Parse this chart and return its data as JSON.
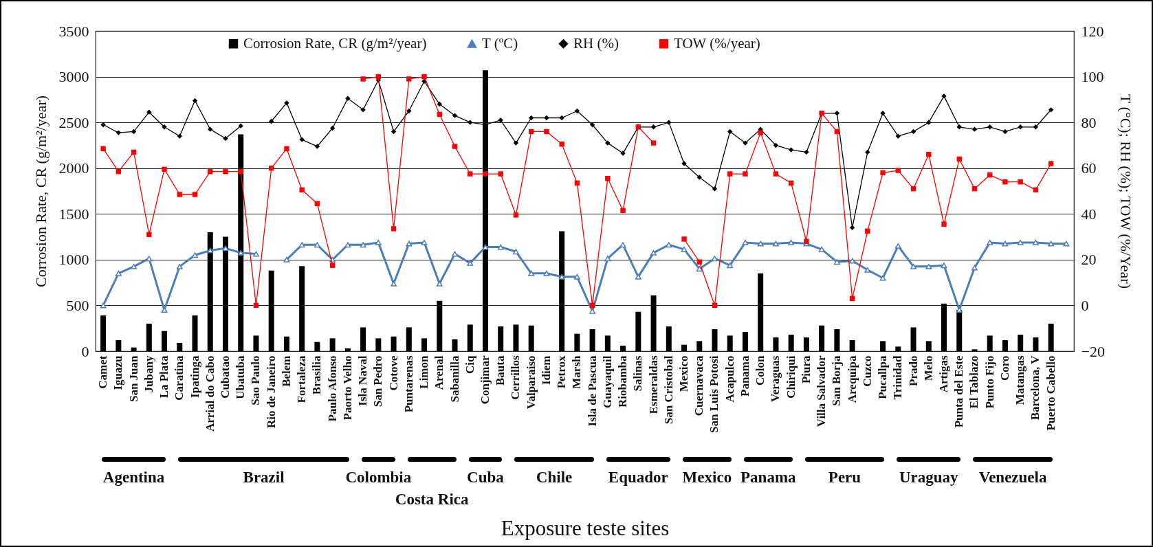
{
  "chart_data": {
    "type": "bar",
    "xlabel": "Exposure teste sites",
    "ylabel": "Corrosion Rate, CR (g/m²/year)",
    "y2label": "T (°C); RH (%); TOW (%/Year)",
    "categories": [
      "Camet",
      "Iguazu",
      "San Juan",
      "Jubany",
      "La Plata",
      "Caratina",
      "Ipatinga",
      "Arrial do Cabo",
      "Cubatao",
      "Ubatuba",
      "Sao Paulo",
      "Rio de Janeiro",
      "Belem",
      "Fortaleza",
      "Brasilia",
      "Paulo Afonso",
      "Paorto Velho",
      "Isla Naval",
      "San Pedro",
      "Cotove",
      "Puntarenas",
      "Limon",
      "Arenal",
      "Sabanilla",
      "Ciq",
      "Conjimar",
      "Bauta",
      "Cerrillos",
      "Valparaiso",
      "Idiem",
      "Petrox",
      "Marsh",
      "Isla de Pascua",
      "Guayaquil",
      "Riobamba",
      "Salinas",
      "Esmeraldas",
      "San Cristobal",
      "Mexico",
      "Cuernavaca",
      "San Luis Potosi",
      "Acapulco",
      "Panama",
      "Colon",
      "Veraguas",
      "Chiriqui",
      "Piura",
      "Villa Salvador",
      "San Borja",
      "Arequipa",
      "Cuzco",
      "Pucallpa",
      "Trinidad",
      "Prado",
      "Melo",
      "Artigas",
      "Punta del Este",
      "El Tablazo",
      "Punto Fijo",
      "Coro",
      "Matangas",
      "Barcelona, V",
      "Puerto Cabello",
      null
    ],
    "series": [
      {
        "name": "Corrosion Rate, CR (g/m²/year)",
        "color": "#000000",
        "values": [
          390,
          120,
          40,
          300,
          220,
          90,
          390,
          1300,
          1250,
          2370,
          170,
          880,
          160,
          930,
          100,
          140,
          30,
          260,
          140,
          160,
          260,
          140,
          550,
          130,
          290,
          3070,
          270,
          290,
          280,
          null,
          1310,
          190,
          240,
          170,
          60,
          430,
          610,
          270,
          70,
          110,
          240,
          170,
          210,
          850,
          150,
          180,
          150,
          280,
          240,
          120,
          null,
          110,
          50,
          260,
          110,
          520,
          450,
          20,
          170,
          120,
          180,
          150,
          300,
          null
        ]
      },
      {
        "name": "T (ºC)",
        "type": "line",
        "axis": "y2",
        "marker": "triangle",
        "color": "#4a7ebb",
        "values": [
          0,
          14,
          17,
          20.5,
          -2,
          17,
          22,
          24,
          25,
          23,
          22.5,
          null,
          20,
          26.5,
          26.5,
          20,
          26.5,
          26.5,
          27.5,
          9.5,
          27,
          27.5,
          9.5,
          22.5,
          18.5,
          25.5,
          25.5,
          23.5,
          14,
          14,
          12.5,
          12.5,
          -2.5,
          20.5,
          26.5,
          12.5,
          23,
          26.5,
          24.5,
          16,
          20.5,
          17.5,
          27.5,
          27,
          27,
          27.5,
          27,
          24.5,
          19,
          19.5,
          15.5,
          12,
          26,
          17,
          17,
          17.5,
          -2,
          16.5,
          27.5,
          27,
          27.5,
          27.5,
          27,
          27
        ]
      },
      {
        "name": "RH (%)",
        "type": "line",
        "axis": "y2",
        "marker": "diamond",
        "color": "#000000",
        "values": [
          79,
          75.5,
          76,
          84.5,
          78,
          74,
          89.5,
          77,
          73,
          78.5,
          null,
          80.5,
          88.5,
          72.5,
          69.5,
          77.5,
          90.5,
          85.5,
          98.5,
          76,
          85,
          98,
          88,
          83,
          80,
          79,
          81,
          71,
          82,
          82,
          82,
          85,
          79,
          71,
          66.5,
          78,
          78,
          80,
          62,
          56,
          51,
          76,
          71,
          77,
          70,
          68,
          67,
          84,
          84,
          34,
          67,
          84,
          74,
          76,
          80,
          91.5,
          78,
          77,
          78,
          76,
          78,
          78,
          85.5,
          null
        ]
      },
      {
        "name": "TOW (%/year)",
        "type": "line",
        "axis": "y2",
        "marker": "square",
        "color": "#ff0000",
        "values": [
          68.5,
          58.5,
          67,
          31,
          59.5,
          48.5,
          48.5,
          58.5,
          58.5,
          58.5,
          0,
          60,
          68.5,
          50.5,
          44.5,
          17.5,
          null,
          99,
          100,
          33.5,
          99,
          100,
          83.5,
          69.5,
          57.5,
          57.5,
          57.5,
          39.5,
          76,
          76,
          70.5,
          53.5,
          0,
          55.5,
          41.5,
          78,
          71,
          null,
          29,
          19,
          0,
          57.5,
          57.5,
          75.5,
          57.5,
          53.5,
          28,
          84,
          76,
          3,
          32.5,
          58,
          59,
          51,
          66,
          35.5,
          64,
          51,
          57,
          54,
          54,
          50.5,
          62,
          null
        ]
      }
    ],
    "ylim": [
      0,
      3500
    ],
    "yticks": [
      0,
      500,
      1000,
      1500,
      2000,
      2500,
      3000,
      3500
    ],
    "y2lim": [
      -20,
      120
    ],
    "y2ticks": [
      -20,
      0,
      20,
      40,
      60,
      80,
      100,
      120
    ],
    "grid": "y",
    "legend": "top",
    "annotations": [
      "Agentina",
      "Brazil",
      "Colombia",
      "Costa Rica",
      "Cuba",
      "Chile",
      "Equador",
      "Mexico",
      "Panama",
      "Peru",
      "Uraguay",
      "Venezuela"
    ]
  }
}
